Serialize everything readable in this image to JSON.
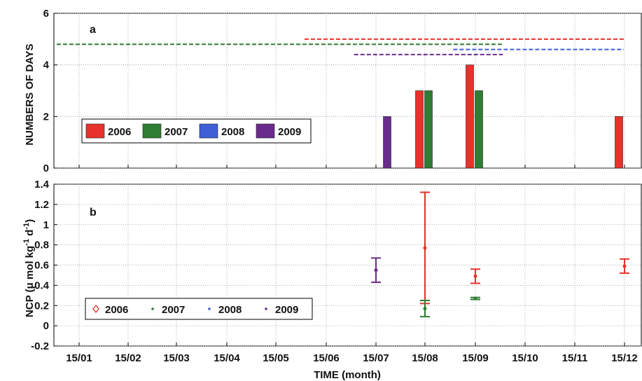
{
  "chart_data": [
    {
      "panel": "a",
      "type": "bar",
      "ylabel": "NUMBERS OF DAYS",
      "xlabel": "",
      "ylim": [
        0,
        6
      ],
      "yticks": [
        0,
        2,
        4,
        6
      ],
      "xticks": [
        "15/01",
        "15/02",
        "15/03",
        "15/04",
        "15/05",
        "15/06",
        "15/07",
        "15/08",
        "15/09",
        "15/10",
        "15/11",
        "15/12"
      ],
      "grid": true,
      "legend_position": "center-left",
      "series": [
        {
          "name": "2006",
          "color": "#e8312a",
          "bars": [
            {
              "x": "15/08",
              "value": 3
            },
            {
              "x": "15/09",
              "value": 4
            },
            {
              "x": "15/12",
              "value": 2
            }
          ]
        },
        {
          "name": "2007",
          "color": "#2e7d32",
          "bars": [
            {
              "x": "15/08",
              "value": 3
            },
            {
              "x": "15/09",
              "value": 3
            }
          ]
        },
        {
          "name": "2008",
          "color": "#3f5fd6",
          "bars": []
        },
        {
          "name": "2009",
          "color": "#6a2c8c",
          "bars": [
            {
              "x": "15/07",
              "value": 2
            }
          ]
        }
      ],
      "coverage_lines": [
        {
          "series": "2006",
          "x_start": "01/06",
          "x_end": "31/12",
          "y": 5.0
        },
        {
          "series": "2007",
          "x_start": "01/01",
          "x_end": "31/09",
          "y": 4.8
        },
        {
          "series": "2008",
          "x_start": "01/09",
          "x_end": "31/12",
          "y": 4.6
        },
        {
          "series": "2009",
          "x_start": "01/07",
          "x_end": "01/10",
          "y": 4.4
        }
      ]
    },
    {
      "panel": "b",
      "type": "scatter",
      "ylabel": "NCP (μ mol kg-1 d-1)",
      "xlabel": "TIME (month)",
      "ylim": [
        -0.2,
        1.4
      ],
      "yticks": [
        -0.2,
        0,
        0.2,
        0.4,
        0.6,
        0.8,
        1,
        1.2,
        1.4
      ],
      "xticks": [
        "15/01",
        "15/02",
        "15/03",
        "15/04",
        "15/05",
        "15/06",
        "15/07",
        "15/08",
        "15/09",
        "15/10",
        "15/11",
        "15/12"
      ],
      "grid": true,
      "legend_position": "bottom-left",
      "series": [
        {
          "name": "2006",
          "color": "#e8312a",
          "marker": "diamond",
          "points": [
            {
              "x": "15/08",
              "y": 0.77,
              "low": 0.22,
              "high": 1.32
            },
            {
              "x": "15/09",
              "y": 0.49,
              "low": 0.42,
              "high": 0.56
            },
            {
              "x": "15/12",
              "y": 0.59,
              "low": 0.52,
              "high": 0.66
            }
          ]
        },
        {
          "name": "2007",
          "color": "#2e7d32",
          "marker": "dot",
          "points": [
            {
              "x": "15/08",
              "y": 0.17,
              "low": 0.09,
              "high": 0.25
            },
            {
              "x": "15/09",
              "y": 0.27,
              "low": 0.26,
              "high": 0.28
            }
          ]
        },
        {
          "name": "2008",
          "color": "#3f5fd6",
          "marker": "dot",
          "points": []
        },
        {
          "name": "2009",
          "color": "#6a2c8c",
          "marker": "dot",
          "points": [
            {
              "x": "15/07",
              "y": 0.55,
              "low": 0.43,
              "high": 0.67
            }
          ]
        }
      ]
    }
  ],
  "labels": {
    "panel_a": "a",
    "panel_b": "b",
    "ylabel_a": "NUMBERS OF DAYS",
    "ylabel_b_prefix": "NCP (μ mol kg",
    "ylabel_b_sup1": "-1",
    "ylabel_b_mid": " d",
    "ylabel_b_sup2": "-1",
    "ylabel_b_suffix": ")",
    "xlabel": "TIME (month)"
  }
}
